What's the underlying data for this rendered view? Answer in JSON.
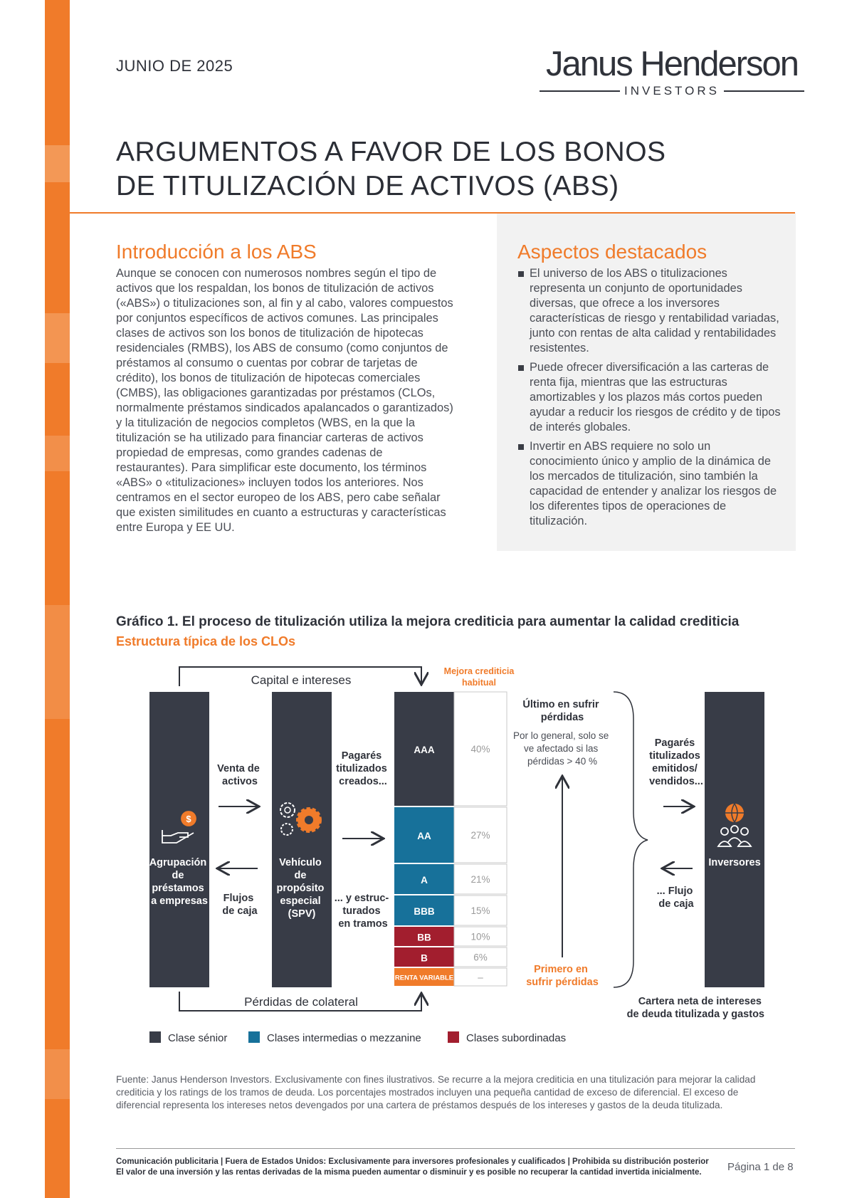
{
  "header": {
    "date": "JUNIO DE 2025",
    "logo_main": "Janus Henderson",
    "logo_sub": "INVESTORS",
    "title_line1": "ARGUMENTOS A FAVOR DE LOS BONOS",
    "title_line2": "DE TITULIZACIÓN DE ACTIVOS (ABS)"
  },
  "intro": {
    "heading": "Introducción a los ABS",
    "body": "Aunque se conocen con numerosos nombres según el tipo de activos que los respaldan, los bonos de titulización de activos («ABS») o titulizaciones son, al fin y al cabo, valores compuestos por conjuntos específicos de activos comunes. Las principales clases de activos son los bonos de titulización de hipotecas residenciales (RMBS), los ABS de consumo (como conjuntos de préstamos al consumo o cuentas por cobrar de tarjetas de crédito), los bonos de titulización de hipotecas comerciales (CMBS), las obligaciones garantizadas por préstamos (CLOs, normalmente préstamos sindicados apalancados o garantizados) y la titulización de negocios completos (WBS, en la que la titulización se ha utilizado para financiar carteras de activos propiedad de empresas, como grandes cadenas de restaurantes). Para simplificar este documento, los términos «ABS» o «titulizaciones» incluyen todos los anteriores. Nos centramos en el sector europeo de los ABS, pero cabe señalar que existen similitudes en cuanto a estructuras y características entre Europa y EE UU."
  },
  "highlights": {
    "heading": "Aspectos destacados",
    "items": [
      "El universo de los ABS o titulizaciones representa un conjunto de oportunidades diversas, que ofrece a los inversores características de riesgo y rentabilidad variadas, junto con rentas de alta calidad y rentabilidades resistentes.",
      "Puede ofrecer diversificación a las carteras de renta fija, mientras que las estructuras amortizables y los plazos más cortos pueden ayudar a reducir los riesgos de crédito y de tipos de interés globales.",
      "Invertir en ABS requiere no solo un conocimiento único y amplio de la dinámica de los mercados de titulización, sino también la capacidad de entender y analizar los riesgos de los diferentes tipos de operaciones de titulización."
    ]
  },
  "figure": {
    "title": "Gráfico 1. El proceso de titulización utiliza la mejora crediticia para aumentar la calidad crediticia",
    "subtitle": "Estructura típica de los CLOs",
    "capital": "Capital e intereses",
    "losses": "Pérdidas de colateral",
    "mejora_1": "Mejora crediticia",
    "mejora_2": "habitual",
    "pool_1": "Agrupación",
    "pool_2": "de",
    "pool_3": "préstamos",
    "pool_4": "a empresas",
    "venta_1": "Venta de",
    "venta_2": "activos",
    "flujos_1": "Flujos",
    "flujos_2": "de caja",
    "spv_1": "Vehículo",
    "spv_2": "de",
    "spv_3": "propósito",
    "spv_4": "especial",
    "spv_5": "(SPV)",
    "pag_1": "Pagarés",
    "pag_2": "titulizados",
    "pag_3": "creados...",
    "tramos_1": "... y estruc-",
    "tramos_2": "turados",
    "tramos_3": "en tramos",
    "ultimo_1": "Último en sufrir",
    "ultimo_2": "pérdidas",
    "ultimo_d1": "Por lo general, solo se",
    "ultimo_d2": "ve afectado si las",
    "ultimo_d3": "pérdidas > 40 %",
    "primero_1": "Primero en",
    "primero_2": "sufrir pérdidas",
    "emit_1": "Pagarés",
    "emit_2": "titulizados",
    "emit_3": "emitidos/",
    "emit_4": "vendidos...",
    "flujo_1": "... Flujo",
    "flujo_2": "de caja",
    "inversores": "Inversores",
    "cartera_1": "Cartera neta de intereses",
    "cartera_2": "de deuda titulizada y gastos",
    "legend_senior": "Clase sénior",
    "legend_mezz": "Clases intermedias o mezzanine",
    "legend_sub": "Clases subordinadas",
    "colors": {
      "senior": "#383c47",
      "mezz": "#17719a",
      "sub": "#a21e2e",
      "equity": "#f07b2a",
      "accent": "#f07b2a"
    }
  },
  "chart_data": {
    "type": "table",
    "title": "Gráfico 1. El proceso de titulización utiliza la mejora crediticia para aumentar la calidad crediticia",
    "subtitle": "Estructura típica de los CLOs",
    "column_header": "Mejora crediticia habitual",
    "tranches": [
      {
        "label": "AAA",
        "enhancement": "40%",
        "class": "senior"
      },
      {
        "label": "AA",
        "enhancement": "27%",
        "class": "mezz"
      },
      {
        "label": "A",
        "enhancement": "21%",
        "class": "mezz"
      },
      {
        "label": "BBB",
        "enhancement": "15%",
        "class": "mezz"
      },
      {
        "label": "BB",
        "enhancement": "10%",
        "class": "sub"
      },
      {
        "label": "B",
        "enhancement": "6%",
        "class": "sub"
      },
      {
        "label": "RENTA VARIABLE",
        "enhancement": "–",
        "class": "equity"
      }
    ]
  },
  "source": "Fuente: Janus Henderson Investors. Exclusivamente con fines ilustrativos. Se recurre a la mejora crediticia en una titulización para mejorar la calidad crediticia y los ratings de los tramos de deuda. Los porcentajes mostrados incluyen una pequeña cantidad de exceso de diferencial. El exceso de diferencial representa los intereses netos devengados por una cartera de préstamos después de los intereses y gastos de la deuda titulizada.",
  "footer": {
    "line1": "Comunicación publicitaria | Fuera de Estados Unidos: Exclusivamente para inversores profesionales y cualificados | Prohibida su distribución posterior",
    "line2": "El valor de una inversión y las rentas derivadas de la misma pueden aumentar o disminuir y es posible no recuperar la cantidad invertida inicialmente.",
    "page": "Página 1 de 8"
  }
}
